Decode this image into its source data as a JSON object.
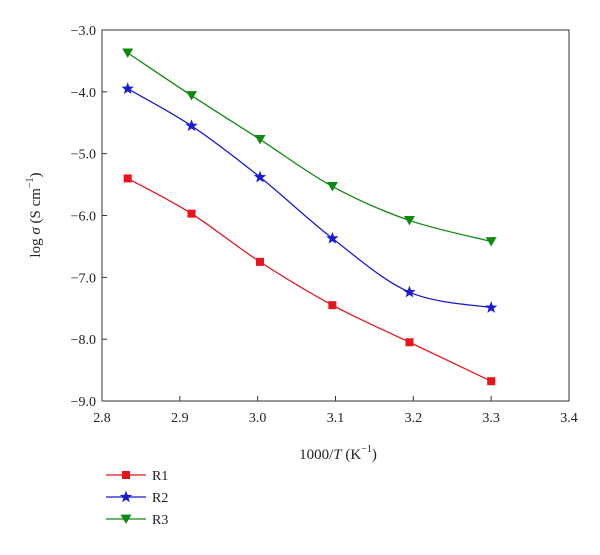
{
  "chart_data": {
    "type": "line",
    "xlabel": {
      "pre": "1000/",
      "var": "T",
      "post": " (K",
      "sup": "−1",
      "end": ")"
    },
    "ylabel": {
      "pre": "log ",
      "var": "σ",
      "post": " (S cm",
      "sup": "−1",
      "end": ")"
    },
    "xlim": [
      2.8,
      3.4
    ],
    "ylim": [
      -9.0,
      -3.0
    ],
    "x_ticks": [
      "2.8",
      "2.9",
      "3.0",
      "3.1",
      "3.2",
      "3.3",
      "3.4"
    ],
    "y_ticks": [
      "−3.0",
      "−4.0",
      "−5.0",
      "−6.0",
      "−7.0",
      "−8.0",
      "−9.0"
    ],
    "grid": false,
    "legend_position": "bottom-left, outside plot",
    "series": [
      {
        "name": "R1",
        "color": "#e8141b",
        "marker": "square",
        "x": [
          2.833,
          2.915,
          3.003,
          3.096,
          3.195,
          3.3
        ],
        "y": [
          -5.4,
          -5.97,
          -6.75,
          -7.45,
          -8.05,
          -8.68
        ]
      },
      {
        "name": "R2",
        "color": "#1a1ad4",
        "marker": "star",
        "x": [
          2.833,
          2.915,
          3.003,
          3.096,
          3.195,
          3.3
        ],
        "y": [
          -3.95,
          -4.55,
          -5.38,
          -6.37,
          -7.24,
          -7.49
        ]
      },
      {
        "name": "R3",
        "color": "#0e8a0e",
        "marker": "triangle-down",
        "x": [
          2.833,
          2.915,
          3.003,
          3.096,
          3.195,
          3.3
        ],
        "y": [
          -3.37,
          -4.06,
          -4.77,
          -5.53,
          -6.08,
          -6.42
        ]
      }
    ]
  }
}
